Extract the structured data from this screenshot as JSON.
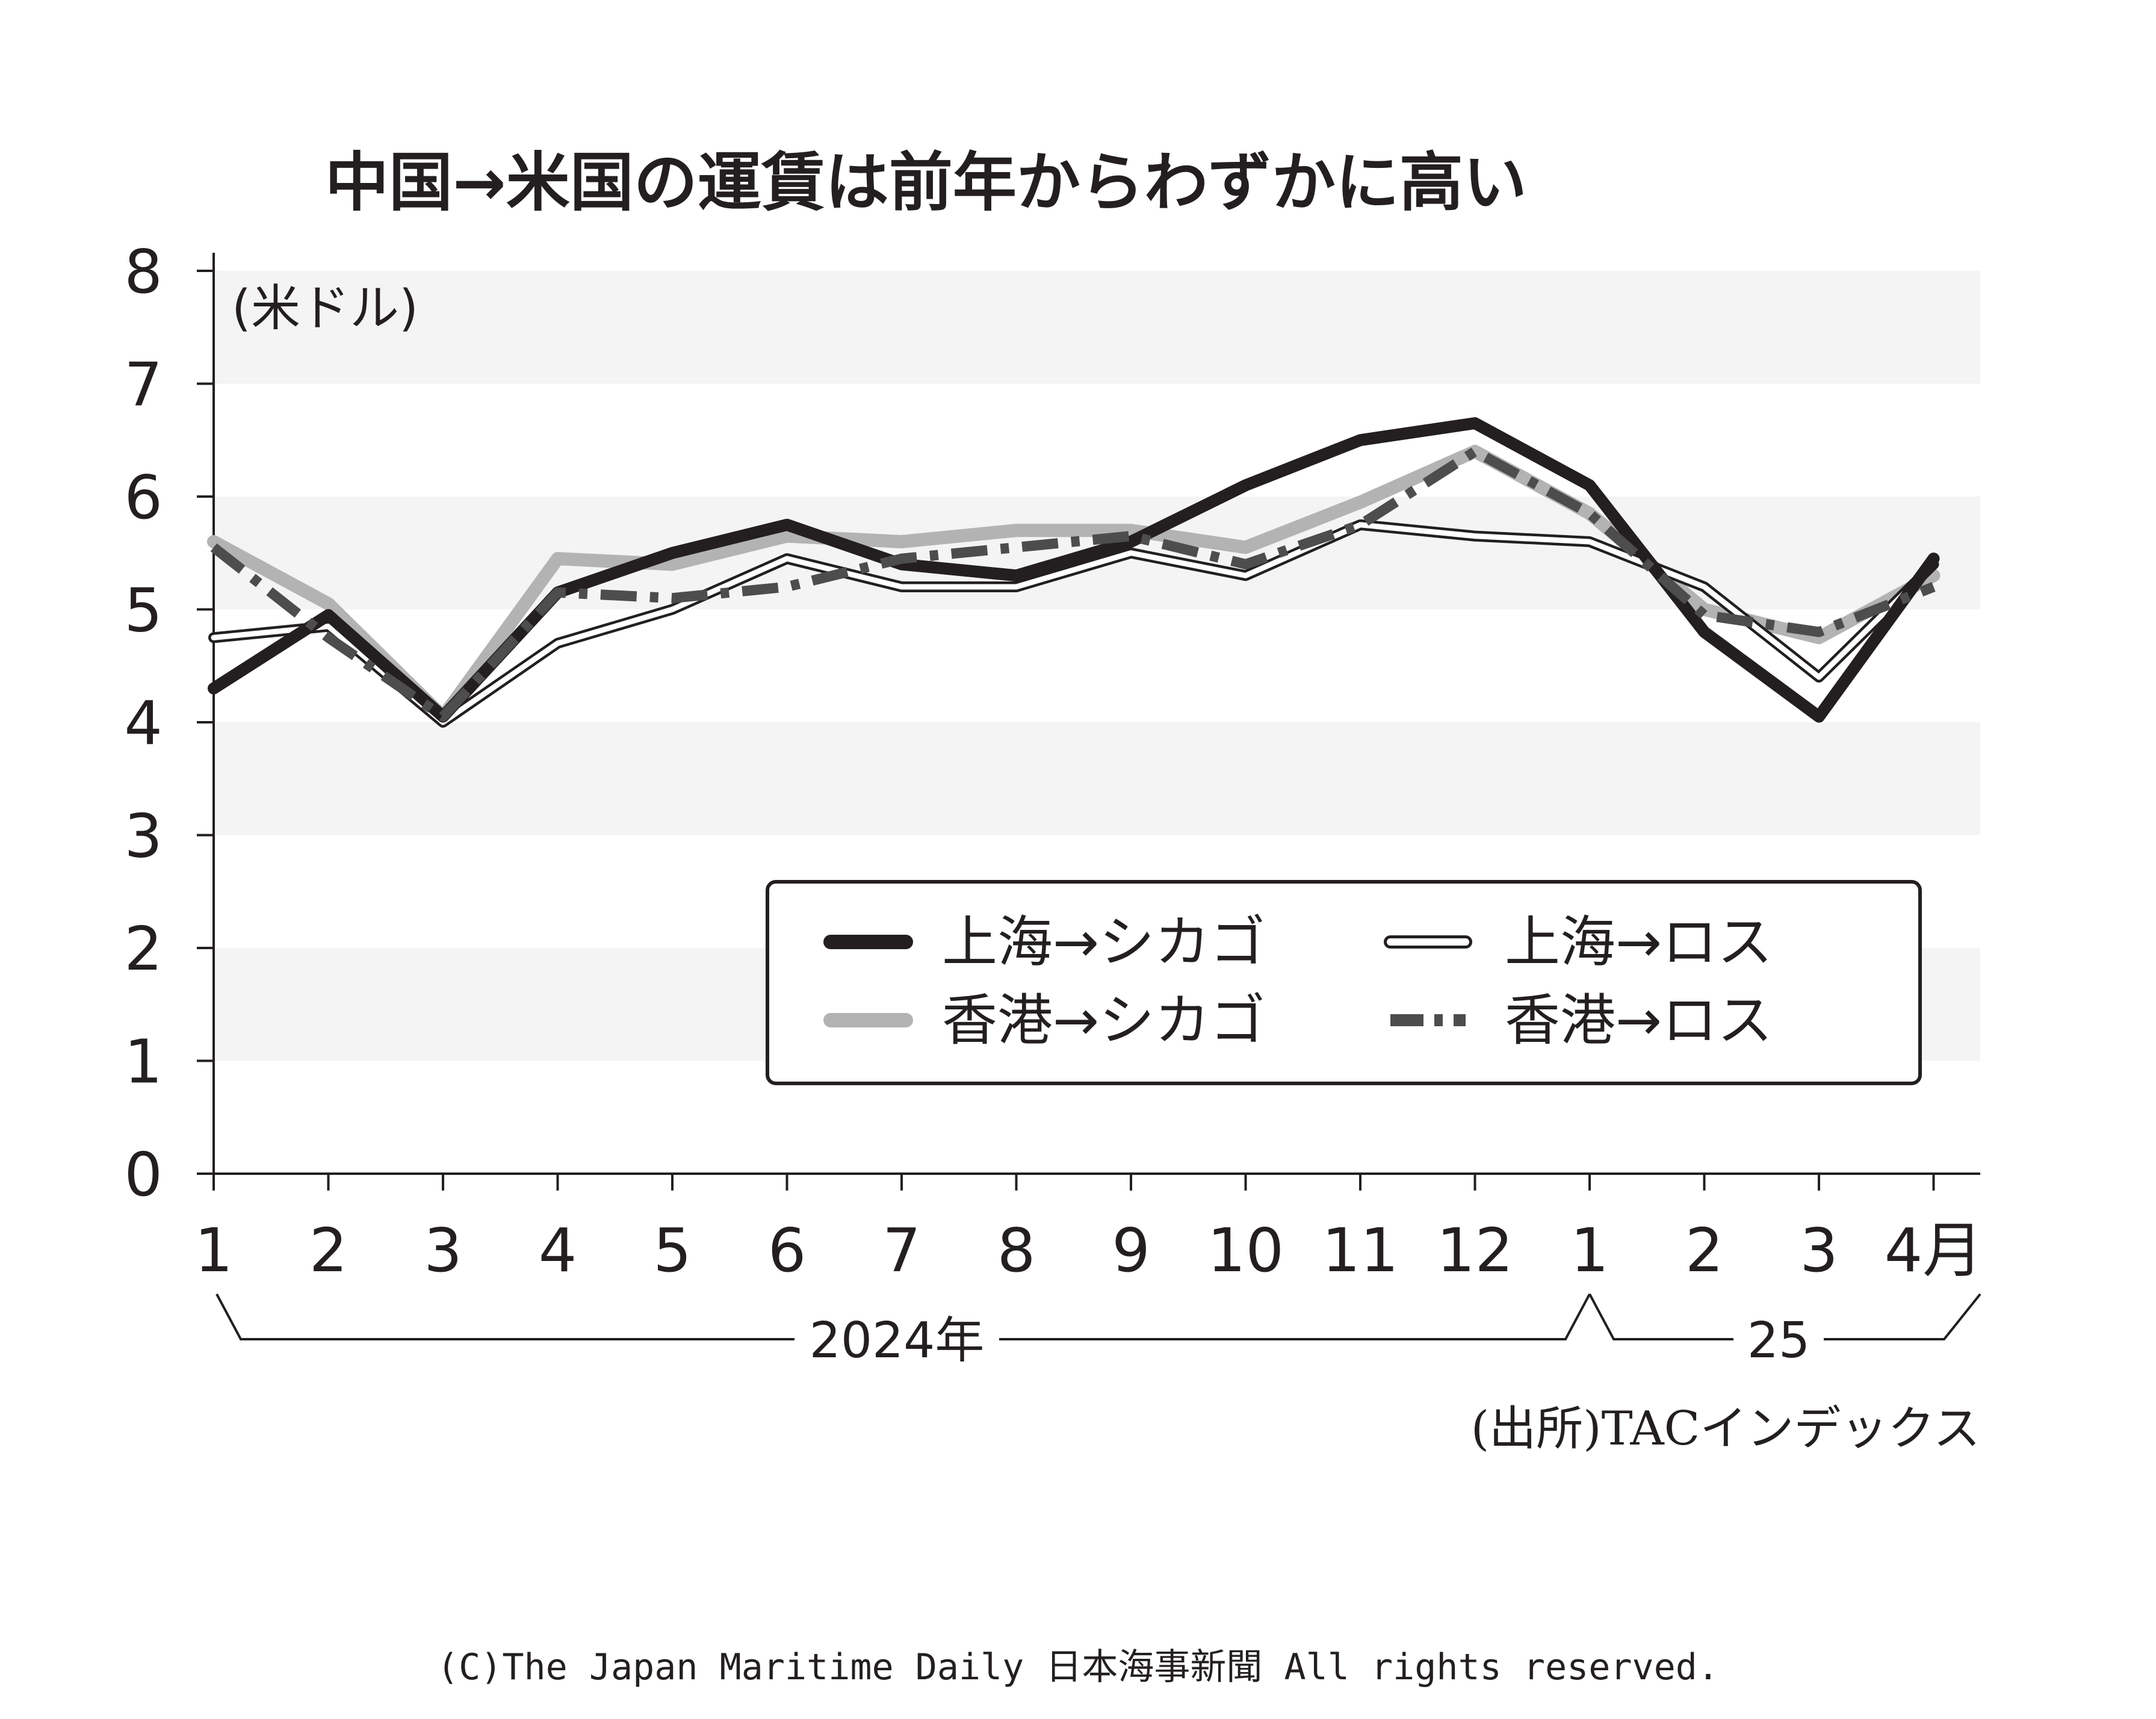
{
  "chart_data": {
    "type": "line",
    "title": "中国→米国の運賃は前年からわずかに高い",
    "unit_label": "(米ドル)",
    "x": [
      "1",
      "2",
      "3",
      "4",
      "5",
      "6",
      "7",
      "8",
      "9",
      "10",
      "11",
      "12",
      "1",
      "2",
      "3",
      "4月"
    ],
    "year_labels": [
      "2024年",
      "25"
    ],
    "ylim": [
      0,
      8
    ],
    "yticks": [
      "0",
      "1",
      "2",
      "3",
      "4",
      "5",
      "6",
      "7",
      "8"
    ],
    "grid_bands": true,
    "legend_placement": "lower-right",
    "series": [
      {
        "name": "上海→シカゴ",
        "style": "thick-black",
        "color": "#231f20",
        "values": [
          4.3,
          4.95,
          4.05,
          5.15,
          5.5,
          5.75,
          5.4,
          5.3,
          5.6,
          6.1,
          6.5,
          6.65,
          6.1,
          4.8,
          4.05,
          5.45
        ]
      },
      {
        "name": "上海→ロス",
        "style": "outline-white",
        "color": "#ffffff",
        "values": [
          4.75,
          4.85,
          4.0,
          4.7,
          5.0,
          5.45,
          5.2,
          5.2,
          5.5,
          5.3,
          5.75,
          5.65,
          5.6,
          5.2,
          4.4,
          5.4
        ]
      },
      {
        "name": "香港→シカゴ",
        "style": "thick-gray",
        "color": "#b3b3b3",
        "values": [
          5.6,
          5.05,
          4.05,
          5.45,
          5.4,
          5.65,
          5.6,
          5.7,
          5.7,
          5.55,
          5.95,
          6.4,
          5.85,
          5.0,
          4.75,
          5.3
        ]
      },
      {
        "name": "香港→ロス",
        "style": "dash-dot-dark",
        "color": "#4d4d4d",
        "values": [
          5.55,
          4.75,
          4.05,
          5.15,
          5.1,
          5.2,
          5.45,
          5.55,
          5.65,
          5.4,
          5.75,
          6.4,
          5.85,
          4.95,
          4.8,
          5.2
        ]
      }
    ],
    "source": "(出所)TACインデックス"
  },
  "footer": {
    "copyright": "(C)The Japan Maritime Daily 日本海事新聞 All rights reserved."
  }
}
